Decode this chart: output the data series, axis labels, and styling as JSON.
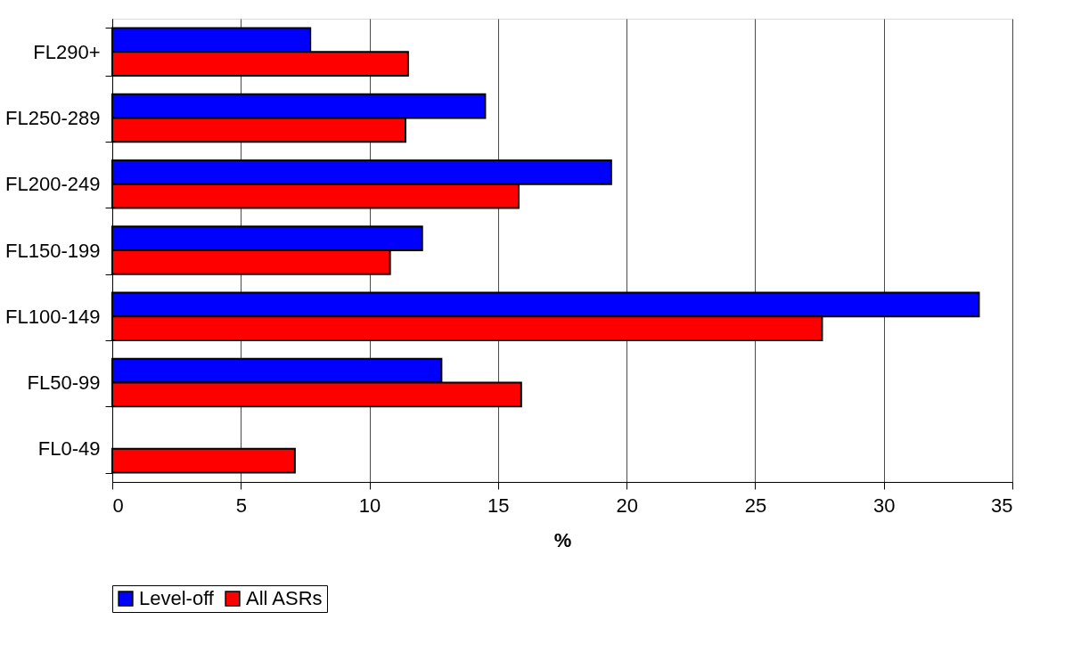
{
  "chart_data": {
    "type": "bar",
    "orientation": "horizontal",
    "xlabel": "%",
    "categories": [
      "FL290+",
      "FL250-289",
      "FL200-249",
      "FL150-199",
      "FL100-149",
      "FL50-99",
      "FL0-49"
    ],
    "series": [
      {
        "name": "Level-off",
        "color": "#0000ff",
        "values": [
          7.7,
          14.5,
          19.4,
          12.05,
          33.7,
          12.8,
          null
        ]
      },
      {
        "name": "All ASRs",
        "color": "#ff0000",
        "values": [
          11.5,
          11.4,
          15.8,
          10.8,
          27.6,
          15.9,
          7.1
        ]
      }
    ],
    "xlim": [
      0,
      35
    ],
    "xticks": [
      0,
      5,
      10,
      15,
      20,
      25,
      30,
      35
    ],
    "grid": "x",
    "legend": "bottom"
  }
}
